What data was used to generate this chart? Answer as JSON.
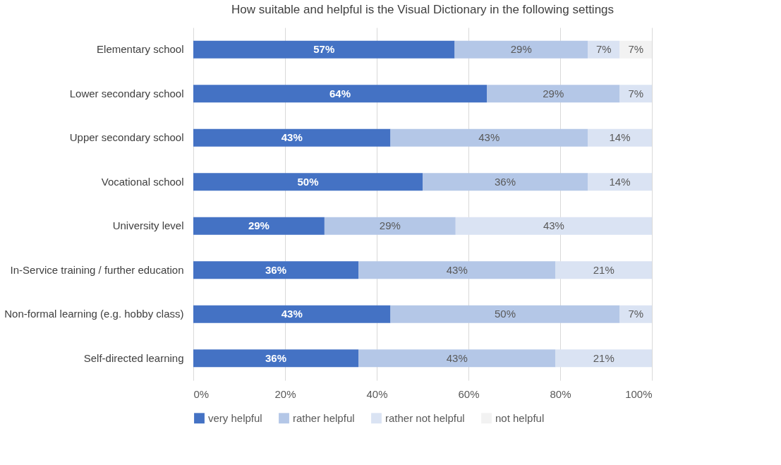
{
  "chart_data": {
    "type": "bar",
    "orientation": "horizontal",
    "stacked": true,
    "title": "How suitable and helpful is the Visual Dictionary in the following settings",
    "categories": [
      "Elementary school",
      "Lower secondary school",
      "Upper secondary school",
      "Vocational school",
      "University level",
      "In-Service training / further education",
      "Non-formal learning (e.g. hobby class)",
      "Self-directed learning"
    ],
    "series": [
      {
        "name": "very helpful",
        "color": "#4472c4",
        "values": [
          57,
          64,
          43,
          50,
          28.6,
          36,
          43,
          36
        ],
        "value_labels": [
          "57%",
          "64%",
          "43%",
          "50%",
          "29%",
          "36%",
          "43%",
          "36%"
        ]
      },
      {
        "name": "rather helpful",
        "color": "#b4c7e7",
        "values": [
          29,
          29,
          43,
          36,
          28.6,
          43,
          50,
          43
        ],
        "value_labels": [
          "29%",
          "29%",
          "43%",
          "36%",
          "29%",
          "43%",
          "50%",
          "43%"
        ]
      },
      {
        "name": "rather not helpful",
        "color": "#dae3f3",
        "values": [
          7,
          7,
          14,
          14,
          42.8,
          21,
          7,
          21
        ],
        "value_labels": [
          "7%",
          "7%",
          "14%",
          "14%",
          "43%",
          "21%",
          "7%",
          "21%"
        ]
      },
      {
        "name": "not helpful",
        "color": "#f2f2f2",
        "values": [
          7,
          null,
          null,
          null,
          null,
          null,
          null,
          null
        ],
        "value_labels": [
          "7%",
          null,
          null,
          null,
          null,
          null,
          null,
          null
        ]
      }
    ],
    "xlim": [
      0,
      100
    ],
    "xticks": [
      {
        "value": 0,
        "label": "0%"
      },
      {
        "value": 20,
        "label": "20%"
      },
      {
        "value": 40,
        "label": "40%"
      },
      {
        "value": 60,
        "label": "60%"
      },
      {
        "value": 80,
        "label": "80%"
      },
      {
        "value": 100,
        "label": "100%"
      }
    ],
    "grid": "x",
    "legend": "bottom"
  }
}
